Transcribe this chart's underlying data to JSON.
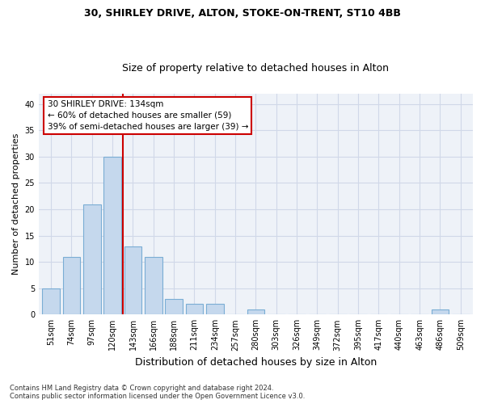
{
  "title1": "30, SHIRLEY DRIVE, ALTON, STOKE-ON-TRENT, ST10 4BB",
  "title2": "Size of property relative to detached houses in Alton",
  "xlabel": "Distribution of detached houses by size in Alton",
  "ylabel": "Number of detached properties",
  "categories": [
    "51sqm",
    "74sqm",
    "97sqm",
    "120sqm",
    "143sqm",
    "166sqm",
    "188sqm",
    "211sqm",
    "234sqm",
    "257sqm",
    "280sqm",
    "303sqm",
    "326sqm",
    "349sqm",
    "372sqm",
    "395sqm",
    "417sqm",
    "440sqm",
    "463sqm",
    "486sqm",
    "509sqm"
  ],
  "values": [
    5,
    11,
    21,
    30,
    13,
    11,
    3,
    2,
    2,
    0,
    1,
    0,
    0,
    0,
    0,
    0,
    0,
    0,
    0,
    1,
    0
  ],
  "bar_color": "#c5d8ed",
  "bar_edge_color": "#7aadd4",
  "annotation_text": "30 SHIRLEY DRIVE: 134sqm\n← 60% of detached houses are smaller (59)\n39% of semi-detached houses are larger (39) →",
  "annotation_box_color": "#ffffff",
  "annotation_box_edge_color": "#cc0000",
  "red_line_color": "#cc0000",
  "ylim": [
    0,
    42
  ],
  "yticks": [
    0,
    5,
    10,
    15,
    20,
    25,
    30,
    35,
    40
  ],
  "footer": "Contains HM Land Registry data © Crown copyright and database right 2024.\nContains public sector information licensed under the Open Government Licence v3.0.",
  "grid_color": "#d0d8e8",
  "bg_color": "#eef2f8",
  "title1_fontsize": 9,
  "title2_fontsize": 9,
  "ylabel_fontsize": 8,
  "xlabel_fontsize": 9,
  "tick_fontsize": 7,
  "annot_fontsize": 7.5,
  "footer_fontsize": 6
}
